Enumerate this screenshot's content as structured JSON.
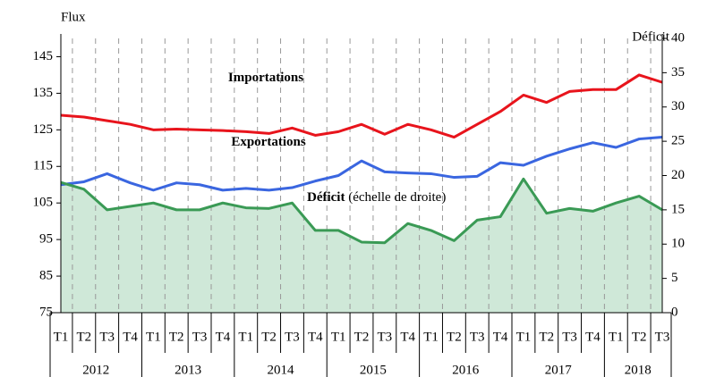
{
  "chart_data": {
    "type": "line",
    "ylabel": "Flux",
    "y2label": "Déficit",
    "categories": [
      "T1",
      "T2",
      "T3",
      "T4",
      "T1",
      "T2",
      "T3",
      "T4",
      "T1",
      "T2",
      "T3",
      "T4",
      "T1",
      "T2",
      "T3",
      "T4",
      "T1",
      "T2",
      "T3",
      "T4",
      "T1",
      "T2",
      "T3",
      "T4",
      "T1",
      "T2",
      "T3"
    ],
    "years": [
      "2012",
      "2013",
      "2014",
      "2015",
      "2016",
      "2017",
      "2018"
    ],
    "series": [
      {
        "name": "Importations",
        "color": "#e8141c",
        "values": [
          129,
          128.5,
          127.5,
          126.5,
          125,
          125.2,
          125,
          124.8,
          124.5,
          124,
          125.5,
          123.5,
          124.5,
          126.5,
          123.8,
          126.5,
          125,
          123,
          126.5,
          130,
          134.5,
          132.5,
          135.5,
          136,
          136,
          140,
          138
        ]
      },
      {
        "name": "Exportations",
        "color": "#3a66e0",
        "values": [
          110,
          110.8,
          113,
          110.5,
          108.5,
          110.5,
          110,
          108.5,
          109,
          108.5,
          109.2,
          111,
          112.5,
          116.5,
          113.5,
          113.2,
          113,
          112,
          112.3,
          116,
          115.3,
          117.8,
          119.8,
          121.5,
          120.2,
          122.5,
          123
        ]
      },
      {
        "name": "Déficit",
        "note": "(échelle de droite)",
        "color": "#3a9a55",
        "fill": "#cfe8d8",
        "axis": "y2",
        "values": [
          19,
          18,
          15,
          15.5,
          16,
          15,
          15,
          16,
          15.3,
          15.2,
          16,
          12,
          12,
          10.3,
          10.2,
          13,
          12,
          10.5,
          13.5,
          14,
          19.5,
          14.5,
          15.2,
          14.8,
          16,
          17,
          15
        ]
      }
    ],
    "ylim": [
      75,
      150
    ],
    "yticks": [
      75,
      85,
      95,
      105,
      115,
      125,
      135,
      145
    ],
    "y2lim": [
      0,
      40
    ],
    "y2ticks": [
      0,
      5,
      10,
      15,
      20,
      25,
      30,
      35,
      40
    ]
  }
}
